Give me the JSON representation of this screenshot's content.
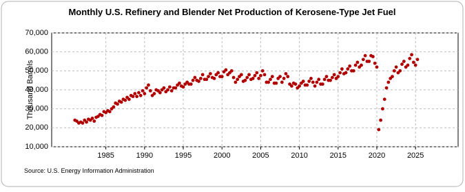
{
  "chart_data": {
    "type": "scatter",
    "title": "Monthly U.S. Refinery and Blender Net Production of Kerosene-Type Jet Fuel",
    "y_label": "Thousand Barrels",
    "source": "Source: U.S. Energy Information Administration",
    "color": "#b00000",
    "grid": true,
    "xlim": [
      1978,
      2030.5
    ],
    "ylim": [
      10000,
      70000
    ],
    "xticks": [
      1985,
      1990,
      1995,
      2000,
      2005,
      2010,
      2015,
      2020,
      2025
    ],
    "yticks": [
      {
        "value": 10000,
        "label": "10,000"
      },
      {
        "value": 20000,
        "label": "20,000"
      },
      {
        "value": 30000,
        "label": "30,000"
      },
      {
        "value": 40000,
        "label": "40,000"
      },
      {
        "value": 50000,
        "label": "50,000"
      },
      {
        "value": 60000,
        "label": "60,000"
      },
      {
        "value": 70000,
        "label": "70,000"
      }
    ],
    "x": [
      1981,
      1981.25,
      1981.5,
      1981.75,
      1982,
      1982.25,
      1982.5,
      1982.75,
      1983,
      1983.25,
      1983.5,
      1983.75,
      1984,
      1984.25,
      1984.5,
      1984.75,
      1985,
      1985.25,
      1985.5,
      1985.75,
      1986,
      1986.25,
      1986.5,
      1986.75,
      1987,
      1987.25,
      1987.5,
      1987.75,
      1988,
      1988.25,
      1988.5,
      1988.75,
      1989,
      1989.25,
      1989.5,
      1989.75,
      1990,
      1990.25,
      1990.5,
      1990.75,
      1991,
      1991.25,
      1991.5,
      1991.75,
      1992,
      1992.25,
      1992.5,
      1992.75,
      1993,
      1993.25,
      1993.5,
      1993.75,
      1994,
      1994.25,
      1994.5,
      1994.75,
      1995,
      1995.25,
      1995.5,
      1995.75,
      1996,
      1996.25,
      1996.5,
      1996.75,
      1997,
      1997.25,
      1997.5,
      1997.75,
      1998,
      1998.25,
      1998.5,
      1998.75,
      1999,
      1999.25,
      1999.5,
      1999.75,
      2000,
      2000.25,
      2000.5,
      2000.75,
      2001,
      2001.25,
      2001.5,
      2001.75,
      2002,
      2002.25,
      2002.5,
      2002.75,
      2003,
      2003.25,
      2003.5,
      2003.75,
      2004,
      2004.25,
      2004.5,
      2004.75,
      2005,
      2005.25,
      2005.5,
      2005.75,
      2006,
      2006.25,
      2006.5,
      2006.75,
      2007,
      2007.25,
      2007.5,
      2007.75,
      2008,
      2008.25,
      2008.5,
      2008.75,
      2009,
      2009.25,
      2009.5,
      2009.75,
      2010,
      2010.25,
      2010.5,
      2010.75,
      2011,
      2011.25,
      2011.5,
      2011.75,
      2012,
      2012.25,
      2012.5,
      2012.75,
      2013,
      2013.25,
      2013.5,
      2013.75,
      2014,
      2014.25,
      2014.5,
      2014.75,
      2015,
      2015.25,
      2015.5,
      2015.75,
      2016,
      2016.25,
      2016.5,
      2016.75,
      2017,
      2017.25,
      2017.5,
      2017.75,
      2018,
      2018.25,
      2018.5,
      2018.75,
      2019,
      2019.25,
      2019.5,
      2019.75,
      2020,
      2020.25,
      2020.5,
      2020.75,
      2021,
      2021.25,
      2021.5,
      2021.75,
      2022,
      2022.25,
      2022.5,
      2022.75,
      2023,
      2023.25,
      2023.5,
      2023.75,
      2024,
      2024.25,
      2024.5,
      2024.75,
      2025,
      2025.25
    ],
    "values": [
      24000,
      23500,
      22500,
      23000,
      22500,
      24000,
      23000,
      24500,
      24000,
      25000,
      23500,
      25500,
      26000,
      27000,
      26500,
      28500,
      28000,
      29000,
      28500,
      30000,
      31000,
      33000,
      32500,
      34000,
      33500,
      35000,
      34500,
      36000,
      35000,
      37000,
      36500,
      38000,
      36500,
      38500,
      37000,
      39500,
      38000,
      41000,
      42500,
      39500,
      37000,
      38000,
      40000,
      39500,
      38500,
      40000,
      41000,
      39000,
      40000,
      41500,
      39500,
      41000,
      41000,
      42500,
      43500,
      42000,
      41500,
      43000,
      44000,
      43000,
      43000,
      45000,
      46500,
      45000,
      44500,
      46000,
      48000,
      45500,
      45500,
      47000,
      48500,
      46500,
      46000,
      48000,
      49000,
      47000,
      47000,
      49500,
      50500,
      48000,
      49000,
      50000,
      46500,
      44000,
      45500,
      47000,
      48000,
      44500,
      45000,
      46500,
      48000,
      45500,
      46000,
      47500,
      49000,
      46000,
      47500,
      50000,
      48000,
      44000,
      44000,
      45500,
      47000,
      43500,
      43500,
      46000,
      47000,
      44000,
      46000,
      48500,
      47000,
      43000,
      42000,
      43500,
      43000,
      41000,
      42000,
      43500,
      44500,
      42500,
      42500,
      44500,
      46000,
      44000,
      42000,
      44000,
      45500,
      43000,
      43000,
      45500,
      47000,
      45000,
      45000,
      46500,
      48000,
      46000,
      47000,
      49000,
      51000,
      48500,
      49000,
      51000,
      52500,
      50000,
      50000,
      53000,
      54500,
      52000,
      53000,
      56000,
      58000,
      55000,
      55000,
      58000,
      57500,
      54000,
      52000,
      19000,
      24000,
      30000,
      35000,
      41000,
      44000,
      46000,
      47000,
      50000,
      52000,
      49000,
      50000,
      53500,
      55000,
      52000,
      53000,
      56500,
      58500,
      54500,
      53000,
      56000
    ]
  }
}
